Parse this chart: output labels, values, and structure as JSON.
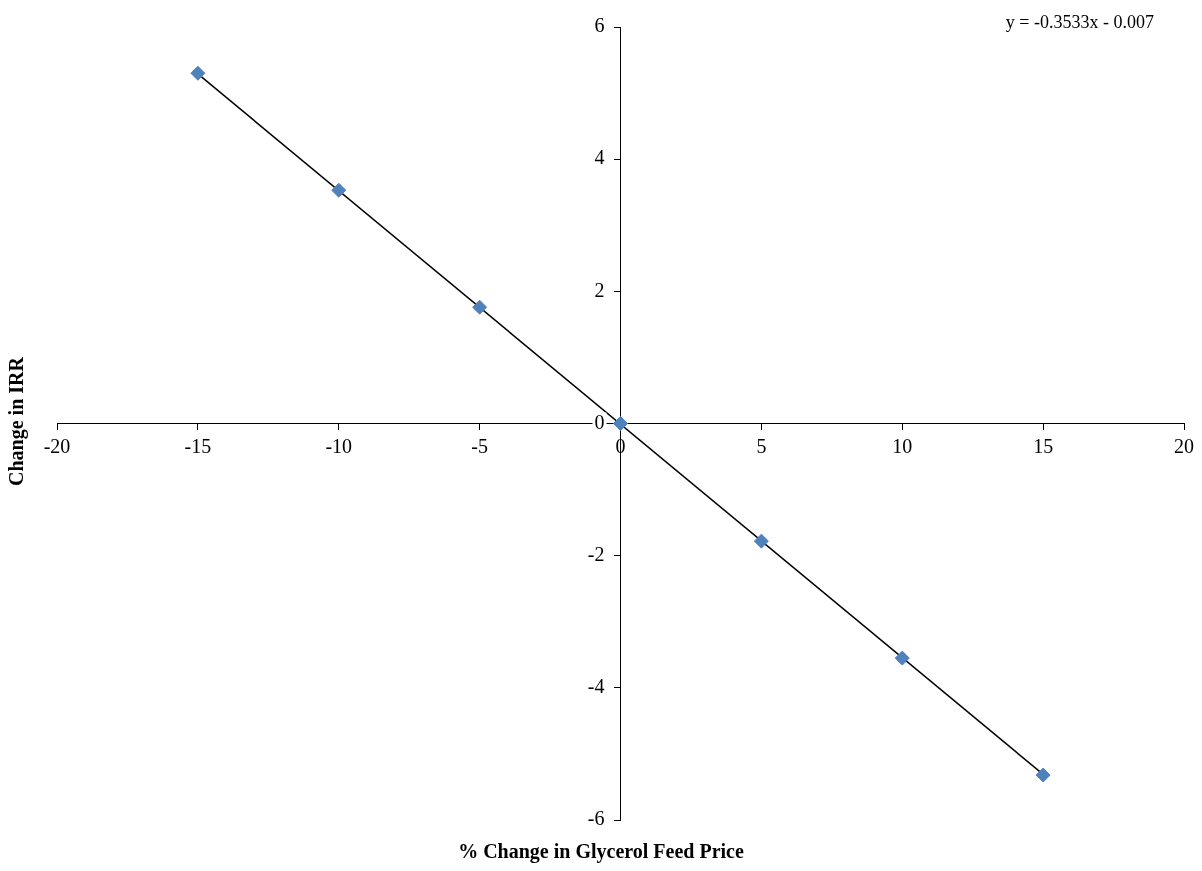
{
  "chart_data": {
    "type": "scatter",
    "xlabel": "% Change in Glycerol Feed Price",
    "ylabel": "Change in IRR",
    "x": [
      -15,
      -10,
      -5,
      0,
      5,
      10,
      15
    ],
    "series": [
      {
        "type": "scatter",
        "color": "#4f81bd",
        "marker": "diamond",
        "values": [
          5.3,
          3.53,
          1.76,
          0,
          -1.78,
          -3.55,
          -5.32
        ]
      },
      {
        "type": "line",
        "color": "#000000",
        "marker": "none",
        "x": [
          -15,
          15
        ],
        "values": [
          5.29,
          -5.31
        ]
      }
    ],
    "xlim": [
      -20,
      20
    ],
    "xticks": [
      -20,
      -15,
      -10,
      -5,
      0,
      5,
      10,
      15,
      20
    ],
    "ylim": [
      -6,
      6
    ],
    "yticks": [
      -6,
      -4,
      -2,
      0,
      2,
      4,
      6
    ],
    "grid": false,
    "legend": false,
    "annotations": [
      "y = -0.3533x - 0.007"
    ]
  }
}
